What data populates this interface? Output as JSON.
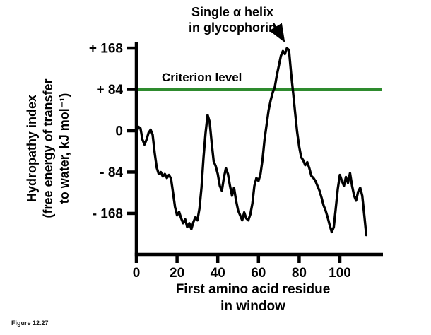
{
  "figure": {
    "label": "Figure 12.27"
  },
  "annotation": {
    "text_line1": "Single α helix",
    "text_line2": "in glycophorin"
  },
  "criterion": {
    "label": "Criterion level",
    "value": 84,
    "color": "#2e8b2e"
  },
  "axes": {
    "y_label_lines": [
      "Hydropathy index",
      "(free energy of transfer",
      "to water, kJ mol⁻¹)"
    ],
    "x_label_lines": [
      "First amino acid residue",
      "in window"
    ],
    "y_tick_labels": [
      "+ 168",
      "+ 84",
      "0",
      "- 84",
      "- 168"
    ],
    "y_tick_values": [
      168,
      84,
      0,
      -84,
      -168
    ],
    "x_tick_labels": [
      "0",
      "20",
      "40",
      "60",
      "80",
      "100"
    ],
    "x_tick_values": [
      0,
      20,
      40,
      60,
      80,
      100
    ]
  },
  "chart_data": {
    "type": "line",
    "title": "",
    "xlabel": "First amino acid residue in window",
    "ylabel": "Hydropathy index (free energy of transfer to water, kJ mol⁻¹)",
    "xlim": [
      0,
      120
    ],
    "ylim": [
      -255,
      195
    ],
    "grid": false,
    "legend": "none",
    "criterion_level": 84,
    "annotation_note": "Single α helix in glycophorin — arrow points to peak near residue 74 at about +168",
    "series": [
      {
        "name": "Glycophorin hydropathy",
        "points": [
          [
            0,
            -5
          ],
          [
            1,
            8
          ],
          [
            2,
            5
          ],
          [
            3,
            -18
          ],
          [
            4,
            -28
          ],
          [
            5,
            -18
          ],
          [
            6,
            -4
          ],
          [
            7,
            2
          ],
          [
            8,
            -8
          ],
          [
            9,
            -45
          ],
          [
            10,
            -75
          ],
          [
            11,
            -88
          ],
          [
            12,
            -84
          ],
          [
            13,
            -93
          ],
          [
            14,
            -88
          ],
          [
            15,
            -96
          ],
          [
            16,
            -90
          ],
          [
            17,
            -97
          ],
          [
            18,
            -125
          ],
          [
            19,
            -155
          ],
          [
            20,
            -172
          ],
          [
            21,
            -165
          ],
          [
            22,
            -178
          ],
          [
            23,
            -188
          ],
          [
            24,
            -180
          ],
          [
            25,
            -196
          ],
          [
            26,
            -188
          ],
          [
            27,
            -200
          ],
          [
            28,
            -186
          ],
          [
            29,
            -176
          ],
          [
            30,
            -182
          ],
          [
            31,
            -158
          ],
          [
            32,
            -115
          ],
          [
            33,
            -55
          ],
          [
            34,
            -5
          ],
          [
            35,
            32
          ],
          [
            36,
            18
          ],
          [
            37,
            -25
          ],
          [
            38,
            -62
          ],
          [
            39,
            -72
          ],
          [
            40,
            -88
          ],
          [
            41,
            -112
          ],
          [
            42,
            -122
          ],
          [
            43,
            -96
          ],
          [
            44,
            -76
          ],
          [
            45,
            -88
          ],
          [
            46,
            -112
          ],
          [
            47,
            -132
          ],
          [
            48,
            -116
          ],
          [
            49,
            -142
          ],
          [
            50,
            -162
          ],
          [
            51,
            -172
          ],
          [
            52,
            -182
          ],
          [
            53,
            -166
          ],
          [
            54,
            -178
          ],
          [
            55,
            -182
          ],
          [
            56,
            -170
          ],
          [
            57,
            -148
          ],
          [
            58,
            -112
          ],
          [
            59,
            -96
          ],
          [
            60,
            -102
          ],
          [
            61,
            -88
          ],
          [
            62,
            -58
          ],
          [
            63,
            -18
          ],
          [
            64,
            12
          ],
          [
            65,
            42
          ],
          [
            66,
            62
          ],
          [
            67,
            78
          ],
          [
            68,
            88
          ],
          [
            69,
            112
          ],
          [
            70,
            132
          ],
          [
            71,
            152
          ],
          [
            72,
            162
          ],
          [
            73,
            156
          ],
          [
            74,
            168
          ],
          [
            75,
            164
          ],
          [
            76,
            118
          ],
          [
            77,
            78
          ],
          [
            78,
            38
          ],
          [
            79,
            -2
          ],
          [
            80,
            -32
          ],
          [
            81,
            -54
          ],
          [
            82,
            -60
          ],
          [
            83,
            -70
          ],
          [
            84,
            -64
          ],
          [
            85,
            -76
          ],
          [
            86,
            -92
          ],
          [
            87,
            -96
          ],
          [
            88,
            -102
          ],
          [
            89,
            -112
          ],
          [
            90,
            -122
          ],
          [
            91,
            -136
          ],
          [
            92,
            -152
          ],
          [
            93,
            -162
          ],
          [
            94,
            -176
          ],
          [
            95,
            -192
          ],
          [
            96,
            -206
          ],
          [
            97,
            -196
          ],
          [
            98,
            -158
          ],
          [
            99,
            -118
          ],
          [
            100,
            -90
          ],
          [
            101,
            -102
          ],
          [
            102,
            -112
          ],
          [
            103,
            -94
          ],
          [
            104,
            -106
          ],
          [
            105,
            -86
          ],
          [
            106,
            -112
          ],
          [
            107,
            -132
          ],
          [
            108,
            -142
          ],
          [
            109,
            -124
          ],
          [
            110,
            -116
          ],
          [
            111,
            -132
          ],
          [
            112,
            -172
          ],
          [
            113,
            -212
          ]
        ]
      }
    ]
  }
}
